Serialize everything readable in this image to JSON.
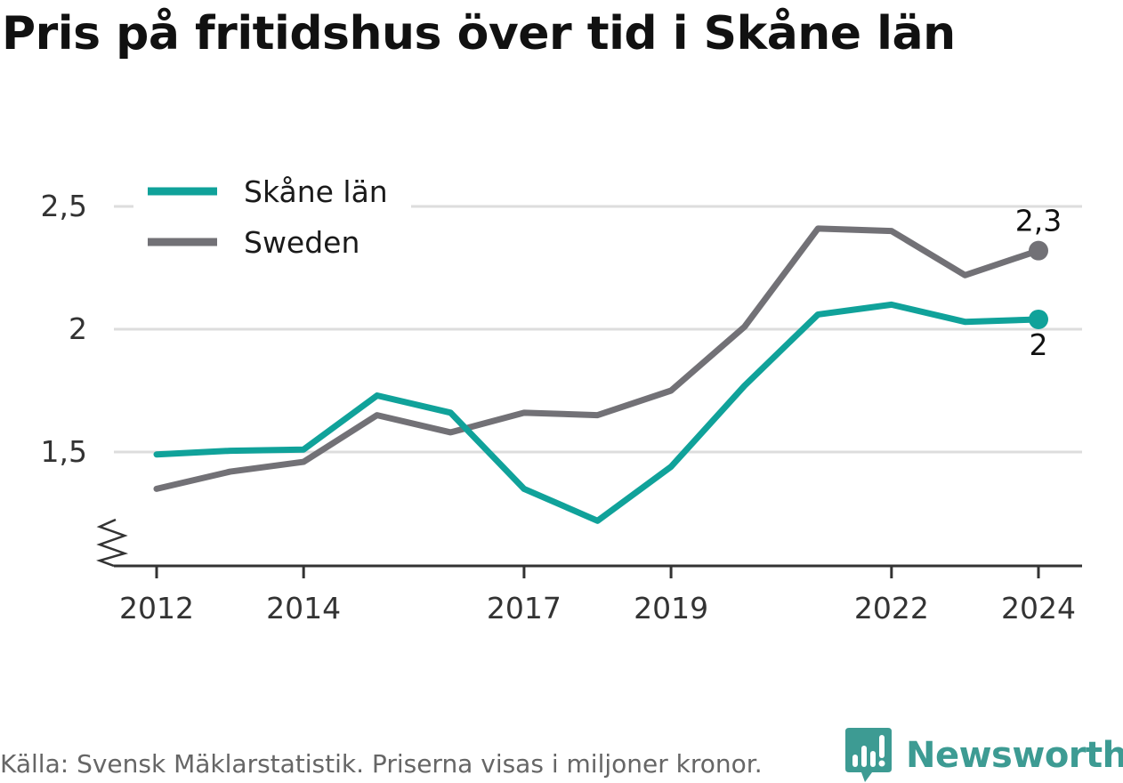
{
  "title": "Pris på fritidshus över tid i Skåne län",
  "source": "Källa: Svensk Mäklarstatistik. Priserna visas i miljoner kronor.",
  "brand": "Newsworthy",
  "colors": {
    "skane": "#10a29a",
    "sweden": "#727176",
    "grid": "#dddddd",
    "axis": "#333333",
    "brand": "#3d9b93"
  },
  "chart_data": {
    "type": "line",
    "title": "Pris på fritidshus över tid i Skåne län",
    "xlabel": "",
    "ylabel": "",
    "x": [
      2012,
      2013,
      2014,
      2015,
      2016,
      2017,
      2018,
      2019,
      2020,
      2021,
      2022,
      2023,
      2024
    ],
    "xticks": [
      2012,
      2014,
      2017,
      2019,
      2022,
      2024
    ],
    "xtick_labels": [
      "2012",
      "2014",
      "2017",
      "2019",
      "2022",
      "2024"
    ],
    "yticks": [
      1.5,
      2,
      2.5
    ],
    "ytick_labels": [
      "1,5",
      "2",
      "2,5"
    ],
    "ylim": [
      1.05,
      2.7
    ],
    "y_axis_break": true,
    "grid": "horizontal",
    "legend_position": "top-left",
    "series": [
      {
        "name": "Skåne län",
        "color": "#10a29a",
        "values": [
          1.49,
          1.505,
          1.51,
          1.73,
          1.66,
          1.35,
          1.22,
          1.44,
          1.77,
          2.06,
          2.1,
          2.03,
          2.04
        ],
        "end_label": "2"
      },
      {
        "name": "Sweden",
        "color": "#727176",
        "values": [
          1.35,
          1.42,
          1.46,
          1.65,
          1.58,
          1.66,
          1.65,
          1.75,
          2.01,
          2.41,
          2.4,
          2.22,
          2.32
        ],
        "end_label": "2,3"
      }
    ]
  }
}
